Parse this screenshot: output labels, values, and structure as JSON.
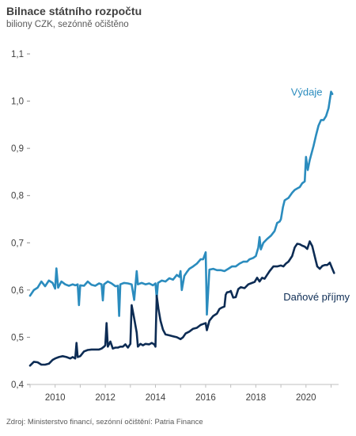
{
  "chart_data": {
    "type": "line",
    "title": "Bilnace státního rozpočtu",
    "subtitle": "biliony CZK, sezónně očištěno",
    "source": "Zdroj: Ministerstvo financí, sezónní očištění: Patria Finance",
    "xlabel": "",
    "ylabel": "",
    "xlim": [
      2009.0,
      2021.3
    ],
    "ylim": [
      0.4,
      1.1
    ],
    "y_ticks": [
      "0,4",
      "0,5",
      "0,6",
      "0,7",
      "0,8",
      "0,9",
      "1,0",
      "1,1"
    ],
    "y_tick_values": [
      0.4,
      0.5,
      0.6,
      0.7,
      0.8,
      0.9,
      1.0,
      1.1
    ],
    "x_ticks": [
      "2010",
      "2012",
      "2014",
      "2016",
      "2018",
      "2020"
    ],
    "x_tick_values": [
      2010,
      2012,
      2014,
      2016,
      2018,
      2020
    ],
    "grid": false,
    "series": [
      {
        "name": "Výdaje",
        "color": "#2b8cbe",
        "points": [
          [
            2009.0,
            0.588
          ],
          [
            2009.15,
            0.6
          ],
          [
            2009.3,
            0.605
          ],
          [
            2009.45,
            0.618
          ],
          [
            2009.6,
            0.608
          ],
          [
            2009.75,
            0.62
          ],
          [
            2009.9,
            0.615
          ],
          [
            2010.0,
            0.603
          ],
          [
            2010.05,
            0.646
          ],
          [
            2010.12,
            0.605
          ],
          [
            2010.25,
            0.618
          ],
          [
            2010.4,
            0.612
          ],
          [
            2010.55,
            0.609
          ],
          [
            2010.7,
            0.612
          ],
          [
            2010.8,
            0.61
          ],
          [
            2010.9,
            0.612
          ],
          [
            2010.95,
            0.568
          ],
          [
            2011.0,
            0.61
          ],
          [
            2011.15,
            0.609
          ],
          [
            2011.3,
            0.618
          ],
          [
            2011.45,
            0.611
          ],
          [
            2011.6,
            0.609
          ],
          [
            2011.75,
            0.614
          ],
          [
            2011.85,
            0.612
          ],
          [
            2011.9,
            0.578
          ],
          [
            2011.95,
            0.612
          ],
          [
            2012.1,
            0.618
          ],
          [
            2012.25,
            0.614
          ],
          [
            2012.4,
            0.608
          ],
          [
            2012.5,
            0.609
          ],
          [
            2012.55,
            0.545
          ],
          [
            2012.6,
            0.612
          ],
          [
            2012.75,
            0.615
          ],
          [
            2012.9,
            0.614
          ],
          [
            2013.05,
            0.612
          ],
          [
            2013.15,
            0.579
          ],
          [
            2013.25,
            0.64
          ],
          [
            2013.3,
            0.612
          ],
          [
            2013.45,
            0.615
          ],
          [
            2013.6,
            0.612
          ],
          [
            2013.75,
            0.614
          ],
          [
            2013.9,
            0.61
          ],
          [
            2014.0,
            0.614
          ],
          [
            2014.05,
            0.583
          ],
          [
            2014.1,
            0.615
          ],
          [
            2014.25,
            0.62
          ],
          [
            2014.4,
            0.618
          ],
          [
            2014.55,
            0.625
          ],
          [
            2014.7,
            0.622
          ],
          [
            2014.85,
            0.632
          ],
          [
            2014.95,
            0.628
          ],
          [
            2015.0,
            0.64
          ],
          [
            2015.05,
            0.6
          ],
          [
            2015.15,
            0.63
          ],
          [
            2015.25,
            0.638
          ],
          [
            2015.35,
            0.645
          ],
          [
            2015.5,
            0.65
          ],
          [
            2015.65,
            0.656
          ],
          [
            2015.8,
            0.665
          ],
          [
            2015.9,
            0.665
          ],
          [
            2016.0,
            0.68
          ],
          [
            2016.05,
            0.548
          ],
          [
            2016.15,
            0.643
          ],
          [
            2016.3,
            0.645
          ],
          [
            2016.45,
            0.642
          ],
          [
            2016.6,
            0.642
          ],
          [
            2016.75,
            0.64
          ],
          [
            2016.9,
            0.645
          ],
          [
            2017.05,
            0.65
          ],
          [
            2017.2,
            0.65
          ],
          [
            2017.35,
            0.656
          ],
          [
            2017.5,
            0.66
          ],
          [
            2017.65,
            0.66
          ],
          [
            2017.75,
            0.665
          ],
          [
            2017.9,
            0.668
          ],
          [
            2018.0,
            0.672
          ],
          [
            2018.1,
            0.69
          ],
          [
            2018.15,
            0.712
          ],
          [
            2018.2,
            0.686
          ],
          [
            2018.3,
            0.7
          ],
          [
            2018.45,
            0.708
          ],
          [
            2018.6,
            0.715
          ],
          [
            2018.75,
            0.725
          ],
          [
            2018.85,
            0.742
          ],
          [
            2018.95,
            0.745
          ],
          [
            2019.0,
            0.75
          ],
          [
            2019.08,
            0.775
          ],
          [
            2019.15,
            0.79
          ],
          [
            2019.3,
            0.795
          ],
          [
            2019.45,
            0.806
          ],
          [
            2019.55,
            0.812
          ],
          [
            2019.65,
            0.815
          ],
          [
            2019.75,
            0.818
          ],
          [
            2019.85,
            0.826
          ],
          [
            2019.95,
            0.83
          ],
          [
            2020.0,
            0.882
          ],
          [
            2020.07,
            0.854
          ],
          [
            2020.15,
            0.875
          ],
          [
            2020.3,
            0.905
          ],
          [
            2020.4,
            0.928
          ],
          [
            2020.5,
            0.948
          ],
          [
            2020.6,
            0.96
          ],
          [
            2020.7,
            0.96
          ],
          [
            2020.8,
            0.968
          ],
          [
            2020.9,
            0.985
          ],
          [
            2021.0,
            1.02
          ],
          [
            2021.05,
            1.015
          ]
        ]
      },
      {
        "name": "Daňové příjmy",
        "color": "#0d2c54",
        "points": [
          [
            2009.0,
            0.44
          ],
          [
            2009.15,
            0.448
          ],
          [
            2009.3,
            0.447
          ],
          [
            2009.45,
            0.442
          ],
          [
            2009.6,
            0.442
          ],
          [
            2009.75,
            0.444
          ],
          [
            2009.9,
            0.452
          ],
          [
            2010.0,
            0.455
          ],
          [
            2010.15,
            0.458
          ],
          [
            2010.3,
            0.46
          ],
          [
            2010.45,
            0.458
          ],
          [
            2010.6,
            0.455
          ],
          [
            2010.7,
            0.458
          ],
          [
            2010.8,
            0.455
          ],
          [
            2010.85,
            0.488
          ],
          [
            2010.9,
            0.458
          ],
          [
            2011.0,
            0.46
          ],
          [
            2011.15,
            0.47
          ],
          [
            2011.3,
            0.473
          ],
          [
            2011.45,
            0.474
          ],
          [
            2011.6,
            0.474
          ],
          [
            2011.75,
            0.474
          ],
          [
            2011.85,
            0.476
          ],
          [
            2011.95,
            0.48
          ],
          [
            2012.0,
            0.483
          ],
          [
            2012.05,
            0.53
          ],
          [
            2012.1,
            0.48
          ],
          [
            2012.2,
            0.491
          ],
          [
            2012.3,
            0.476
          ],
          [
            2012.4,
            0.478
          ],
          [
            2012.5,
            0.478
          ],
          [
            2012.6,
            0.48
          ],
          [
            2012.7,
            0.48
          ],
          [
            2012.8,
            0.485
          ],
          [
            2012.9,
            0.478
          ],
          [
            2012.95,
            0.482
          ],
          [
            2013.0,
            0.486
          ],
          [
            2013.05,
            0.568
          ],
          [
            2013.15,
            0.54
          ],
          [
            2013.25,
            0.51
          ],
          [
            2013.3,
            0.48
          ],
          [
            2013.4,
            0.486
          ],
          [
            2013.5,
            0.483
          ],
          [
            2013.6,
            0.486
          ],
          [
            2013.75,
            0.485
          ],
          [
            2013.85,
            0.488
          ],
          [
            2013.95,
            0.485
          ],
          [
            2014.0,
            0.48
          ],
          [
            2014.05,
            0.588
          ],
          [
            2014.12,
            0.56
          ],
          [
            2014.2,
            0.535
          ],
          [
            2014.3,
            0.516
          ],
          [
            2014.4,
            0.506
          ],
          [
            2014.55,
            0.504
          ],
          [
            2014.7,
            0.502
          ],
          [
            2014.85,
            0.5
          ],
          [
            2015.0,
            0.496
          ],
          [
            2015.1,
            0.5
          ],
          [
            2015.2,
            0.508
          ],
          [
            2015.35,
            0.512
          ],
          [
            2015.5,
            0.518
          ],
          [
            2015.65,
            0.52
          ],
          [
            2015.8,
            0.526
          ],
          [
            2015.9,
            0.528
          ],
          [
            2016.0,
            0.53
          ],
          [
            2016.05,
            0.515
          ],
          [
            2016.15,
            0.535
          ],
          [
            2016.3,
            0.545
          ],
          [
            2016.45,
            0.55
          ],
          [
            2016.55,
            0.56
          ],
          [
            2016.65,
            0.563
          ],
          [
            2016.75,
            0.565
          ],
          [
            2016.8,
            0.59
          ],
          [
            2016.85,
            0.595
          ],
          [
            2016.95,
            0.596
          ],
          [
            2017.0,
            0.598
          ],
          [
            2017.1,
            0.584
          ],
          [
            2017.2,
            0.585
          ],
          [
            2017.3,
            0.602
          ],
          [
            2017.4,
            0.606
          ],
          [
            2017.55,
            0.604
          ],
          [
            2017.7,
            0.612
          ],
          [
            2017.85,
            0.615
          ],
          [
            2017.95,
            0.617
          ],
          [
            2018.05,
            0.626
          ],
          [
            2018.15,
            0.618
          ],
          [
            2018.25,
            0.626
          ],
          [
            2018.35,
            0.624
          ],
          [
            2018.45,
            0.632
          ],
          [
            2018.55,
            0.64
          ],
          [
            2018.7,
            0.65
          ],
          [
            2018.85,
            0.65
          ],
          [
            2019.0,
            0.652
          ],
          [
            2019.1,
            0.65
          ],
          [
            2019.2,
            0.656
          ],
          [
            2019.3,
            0.66
          ],
          [
            2019.45,
            0.672
          ],
          [
            2019.55,
            0.69
          ],
          [
            2019.65,
            0.698
          ],
          [
            2019.75,
            0.697
          ],
          [
            2019.85,
            0.694
          ],
          [
            2019.95,
            0.692
          ],
          [
            2020.05,
            0.687
          ],
          [
            2020.15,
            0.703
          ],
          [
            2020.25,
            0.693
          ],
          [
            2020.35,
            0.671
          ],
          [
            2020.45,
            0.65
          ],
          [
            2020.55,
            0.645
          ],
          [
            2020.65,
            0.651
          ],
          [
            2020.75,
            0.653
          ],
          [
            2020.85,
            0.653
          ],
          [
            2020.95,
            0.658
          ],
          [
            2021.05,
            0.645
          ],
          [
            2021.12,
            0.636
          ]
        ]
      }
    ],
    "annotations": [
      {
        "text": "Výdaje",
        "series": 0,
        "x": 2019.4,
        "y": 1.012,
        "color": "#2b8cbe"
      },
      {
        "text": "Daňové příjmy",
        "series": 1,
        "x": 2019.1,
        "y": 0.578,
        "color": "#0d2c54"
      }
    ]
  }
}
